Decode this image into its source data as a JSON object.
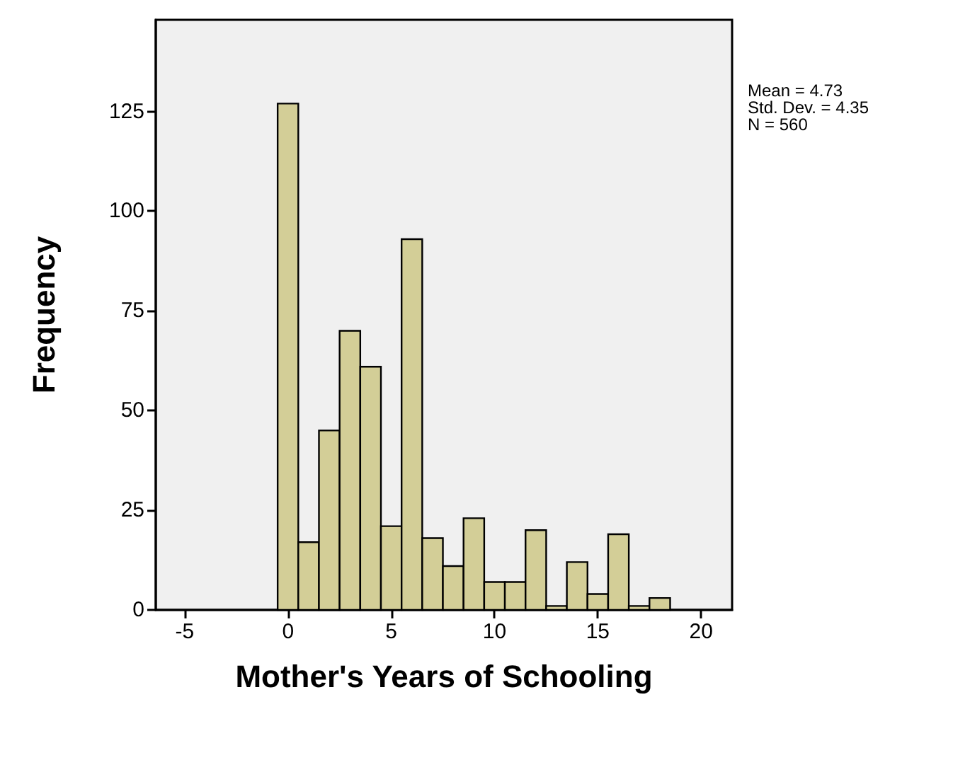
{
  "chart_data": {
    "type": "histogram",
    "xlabel": "Mother's Years of Schooling",
    "ylabel": "Frequency",
    "bins": [
      -0.5,
      0.5,
      1.5,
      2.5,
      3.5,
      4.5,
      5.5,
      6.5,
      7.5,
      8.5,
      9.5,
      10.5,
      11.5,
      12.5,
      13.5,
      14.5,
      15.5,
      16.5,
      17.5,
      18.5
    ],
    "values": [
      127,
      17,
      45,
      70,
      61,
      21,
      93,
      18,
      11,
      23,
      7,
      7,
      20,
      1,
      12,
      4,
      19,
      1,
      3
    ],
    "color": "#d3ce97",
    "xlim": [
      -6.4,
      21.5
    ],
    "xticks": [
      -5,
      0,
      5,
      10,
      15,
      20
    ],
    "ylim": [
      0,
      148
    ],
    "yticks": [
      0,
      25,
      50,
      75,
      100,
      125
    ],
    "grid": false,
    "annotations": [
      "Mean = 4.73\nStd. Dev. = 4.35\nN = 560"
    ]
  }
}
